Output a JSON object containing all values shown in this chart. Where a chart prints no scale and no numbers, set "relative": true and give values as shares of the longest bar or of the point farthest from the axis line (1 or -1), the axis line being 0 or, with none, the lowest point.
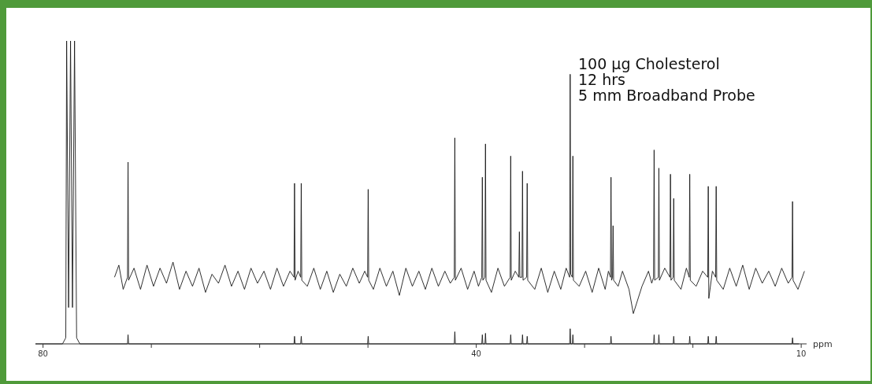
{
  "chart_data": {
    "type": "line",
    "relative": true,
    "xlabel": "ppm",
    "xlim": [
      80.7,
      9.5
    ],
    "xticks": [
      80,
      {
        "value": 70,
        "label": null
      },
      {
        "value": 60,
        "label": null
      },
      {
        "value": 50,
        "label": null
      },
      40,
      {
        "value": 30,
        "label": null
      },
      {
        "value": 20,
        "label": null
      },
      10
    ],
    "annotations": [
      "100 µg Cholesterol",
      "12 hrs",
      "5 mm Broadband Probe"
    ],
    "series": [
      {
        "color": "#1a1a1a",
        "x": [
          73.4,
          73.0,
          72.6,
          72.2,
          72.15,
          72.1,
          71.6,
          71.0,
          70.4,
          69.8,
          69.2,
          68.6,
          68.0,
          67.4,
          66.8,
          66.2,
          65.6,
          65.0,
          64.4,
          63.8,
          63.2,
          62.6,
          62.0,
          61.4,
          60.8,
          60.2,
          59.6,
          59.0,
          58.4,
          57.8,
          57.2,
          56.83,
          56.78,
          56.73,
          56.45,
          56.21,
          56.16,
          56.11,
          55.6,
          55.0,
          54.4,
          53.8,
          53.2,
          52.6,
          52.0,
          51.4,
          50.8,
          50.3,
          50.03,
          49.98,
          49.93,
          49.5,
          48.9,
          48.3,
          47.7,
          47.1,
          46.5,
          45.9,
          45.3,
          44.7,
          44.1,
          43.5,
          42.9,
          42.4,
          42.03,
          41.98,
          41.93,
          41.4,
          40.8,
          40.2,
          39.8,
          39.49,
          39.44,
          39.39,
          39.2,
          39.15,
          39.1,
          38.6,
          38.0,
          37.4,
          36.87,
          36.82,
          36.77,
          36.4,
          36.07,
          36.02,
          35.97,
          35.78,
          35.73,
          35.68,
          35.35,
          35.3,
          35.25,
          34.6,
          34.0,
          33.4,
          32.8,
          32.2,
          31.7,
          31.38,
          31.33,
          31.28,
          31.13,
          31.08,
          31.03,
          30.5,
          29.9,
          29.3,
          28.7,
          28.1,
          27.8,
          27.61,
          27.56,
          27.51,
          27.42,
          27.37,
          27.32,
          26.9,
          26.5,
          25.9,
          25.5,
          24.7,
          24.1,
          23.8,
          23.63,
          23.58,
          23.53,
          23.19,
          23.14,
          23.09,
          22.6,
          22.12,
          22.07,
          22.02,
          21.82,
          21.77,
          21.72,
          21.1,
          20.6,
          20.34,
          20.29,
          20.24,
          19.7,
          19.1,
          18.63,
          18.58,
          18.53,
          18.2,
          17.9,
          17.85,
          17.8,
          17.2,
          16.6,
          16.0,
          15.4,
          14.8,
          14.2,
          13.6,
          13.0,
          12.4,
          11.8,
          11.2,
          10.85,
          10.8,
          10.75,
          10.3,
          9.7
        ],
        "values": [
          0.22,
          0.26,
          0.18,
          0.22,
          0.6,
          0.21,
          0.25,
          0.18,
          0.26,
          0.19,
          0.25,
          0.2,
          0.27,
          0.18,
          0.24,
          0.19,
          0.25,
          0.17,
          0.23,
          0.2,
          0.26,
          0.19,
          0.24,
          0.18,
          0.25,
          0.2,
          0.24,
          0.18,
          0.25,
          0.19,
          0.24,
          0.22,
          0.53,
          0.21,
          0.24,
          0.22,
          0.53,
          0.21,
          0.19,
          0.25,
          0.18,
          0.24,
          0.17,
          0.23,
          0.19,
          0.25,
          0.2,
          0.24,
          0.22,
          0.51,
          0.21,
          0.18,
          0.25,
          0.19,
          0.24,
          0.16,
          0.25,
          0.19,
          0.24,
          0.18,
          0.25,
          0.19,
          0.24,
          0.2,
          0.22,
          0.68,
          0.21,
          0.25,
          0.18,
          0.24,
          0.19,
          0.22,
          0.55,
          0.21,
          0.22,
          0.66,
          0.21,
          0.17,
          0.25,
          0.19,
          0.22,
          0.62,
          0.21,
          0.24,
          0.22,
          0.37,
          0.22,
          0.22,
          0.57,
          0.21,
          0.22,
          0.53,
          0.21,
          0.18,
          0.25,
          0.17,
          0.24,
          0.18,
          0.25,
          0.22,
          0.89,
          0.23,
          0.22,
          0.62,
          0.21,
          0.19,
          0.24,
          0.17,
          0.25,
          0.18,
          0.24,
          0.22,
          0.55,
          0.21,
          0.22,
          0.39,
          0.21,
          0.19,
          0.24,
          0.18,
          0.1,
          0.19,
          0.24,
          0.2,
          0.22,
          0.64,
          0.21,
          0.22,
          0.58,
          0.21,
          0.25,
          0.22,
          0.56,
          0.21,
          0.22,
          0.48,
          0.21,
          0.18,
          0.25,
          0.22,
          0.56,
          0.21,
          0.19,
          0.24,
          0.22,
          0.52,
          0.15,
          0.24,
          0.22,
          0.52,
          0.21,
          0.18,
          0.25,
          0.19,
          0.26,
          0.18,
          0.25,
          0.2,
          0.24,
          0.19,
          0.25,
          0.2,
          0.22,
          0.47,
          0.21,
          0.18,
          0.24
        ]
      },
      {
        "color": "#1a1a1a",
        "x": [
          80.7,
          78.2,
          77.9,
          77.82,
          77.64,
          77.46,
          77.28,
          77.09,
          76.9,
          76.6,
          72.2,
          72.15,
          72.1,
          56.83,
          56.78,
          56.73,
          56.21,
          56.16,
          56.11,
          50.03,
          49.98,
          49.93,
          42.03,
          41.98,
          41.93,
          39.49,
          39.44,
          39.39,
          39.2,
          39.15,
          39.1,
          36.87,
          36.82,
          36.77,
          35.78,
          35.73,
          35.68,
          35.35,
          35.3,
          35.25,
          31.38,
          31.33,
          31.28,
          31.13,
          31.08,
          31.03,
          27.61,
          27.56,
          27.51,
          23.63,
          23.58,
          23.53,
          23.19,
          23.14,
          23.09,
          21.82,
          21.77,
          21.72,
          20.34,
          20.29,
          20.24,
          18.63,
          18.58,
          18.53,
          17.9,
          17.85,
          17.8,
          10.85,
          10.8,
          10.75,
          10.2
        ],
        "values": [
          0,
          0,
          0.02,
          1.0,
          0.12,
          1.0,
          0.12,
          1.0,
          0.02,
          0,
          0,
          0.03,
          0,
          0,
          0.025,
          0,
          0,
          0.025,
          0,
          0,
          0.025,
          0,
          0,
          0.04,
          0,
          0,
          0.03,
          0,
          0,
          0.035,
          0,
          0,
          0.03,
          0,
          0,
          0.03,
          0,
          0,
          0.025,
          0,
          0,
          0.05,
          0,
          0,
          0.03,
          0,
          0,
          0.025,
          0,
          0,
          0.03,
          0,
          0,
          0.03,
          0,
          0,
          0.025,
          0,
          0,
          0.025,
          0,
          0,
          0.025,
          0,
          0,
          0.025,
          0,
          0,
          0.02,
          0,
          0
        ]
      }
    ]
  }
}
